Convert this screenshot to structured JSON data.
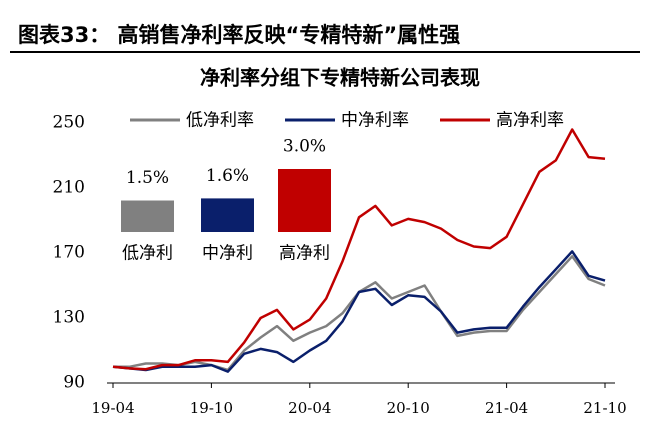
{
  "header": {
    "title": "图表33：  高销售净利率反映“专精特新”属性强"
  },
  "chart_data": [
    {
      "type": "line",
      "title": "净利率分组下专精特新公司表现",
      "categories": [
        "19-04",
        null,
        null,
        null,
        null,
        null,
        "19-10",
        null,
        null,
        null,
        null,
        null,
        "20-04",
        null,
        null,
        null,
        null,
        null,
        "20-10",
        null,
        null,
        null,
        null,
        null,
        "21-04",
        null,
        null,
        null,
        null,
        null,
        "21-10"
      ],
      "series": [
        {
          "name": "低净利率",
          "color": "#808080",
          "values": [
            100,
            100,
            102,
            102,
            101,
            103,
            101,
            98,
            110,
            118,
            125,
            116,
            121,
            125,
            133,
            146,
            152,
            142,
            146,
            150,
            134,
            119,
            121,
            122,
            122,
            135,
            146,
            157,
            168,
            154,
            150
          ]
        },
        {
          "name": "中净利率",
          "color": "#0a1f6b",
          "values": [
            100,
            99,
            98,
            100,
            100,
            100,
            101,
            97,
            108,
            111,
            109,
            103,
            110,
            116,
            128,
            146,
            148,
            138,
            144,
            143,
            134,
            121,
            123,
            124,
            124,
            137,
            149,
            160,
            171,
            156,
            153
          ]
        },
        {
          "name": "高净利率",
          "color": "#c00000",
          "values": [
            100,
            99,
            98.5,
            101,
            101,
            104,
            104,
            103,
            115,
            130,
            135,
            123,
            129,
            142,
            165,
            192,
            199,
            187,
            191,
            189,
            185,
            178,
            174,
            173,
            180,
            200,
            220,
            227,
            246,
            229,
            228
          ]
        }
      ],
      "ylim": [
        90,
        250
      ],
      "yticks": [
        90,
        130,
        170,
        210,
        250
      ]
    },
    {
      "type": "bar",
      "categories": [
        "低净利",
        "中净利",
        "高净利"
      ],
      "values": [
        1.5,
        1.6,
        3.0
      ],
      "value_labels": [
        "1.5%",
        "1.6%",
        "3.0%"
      ],
      "colors": [
        "#808080",
        "#0a1f6b",
        "#c00000"
      ]
    }
  ]
}
